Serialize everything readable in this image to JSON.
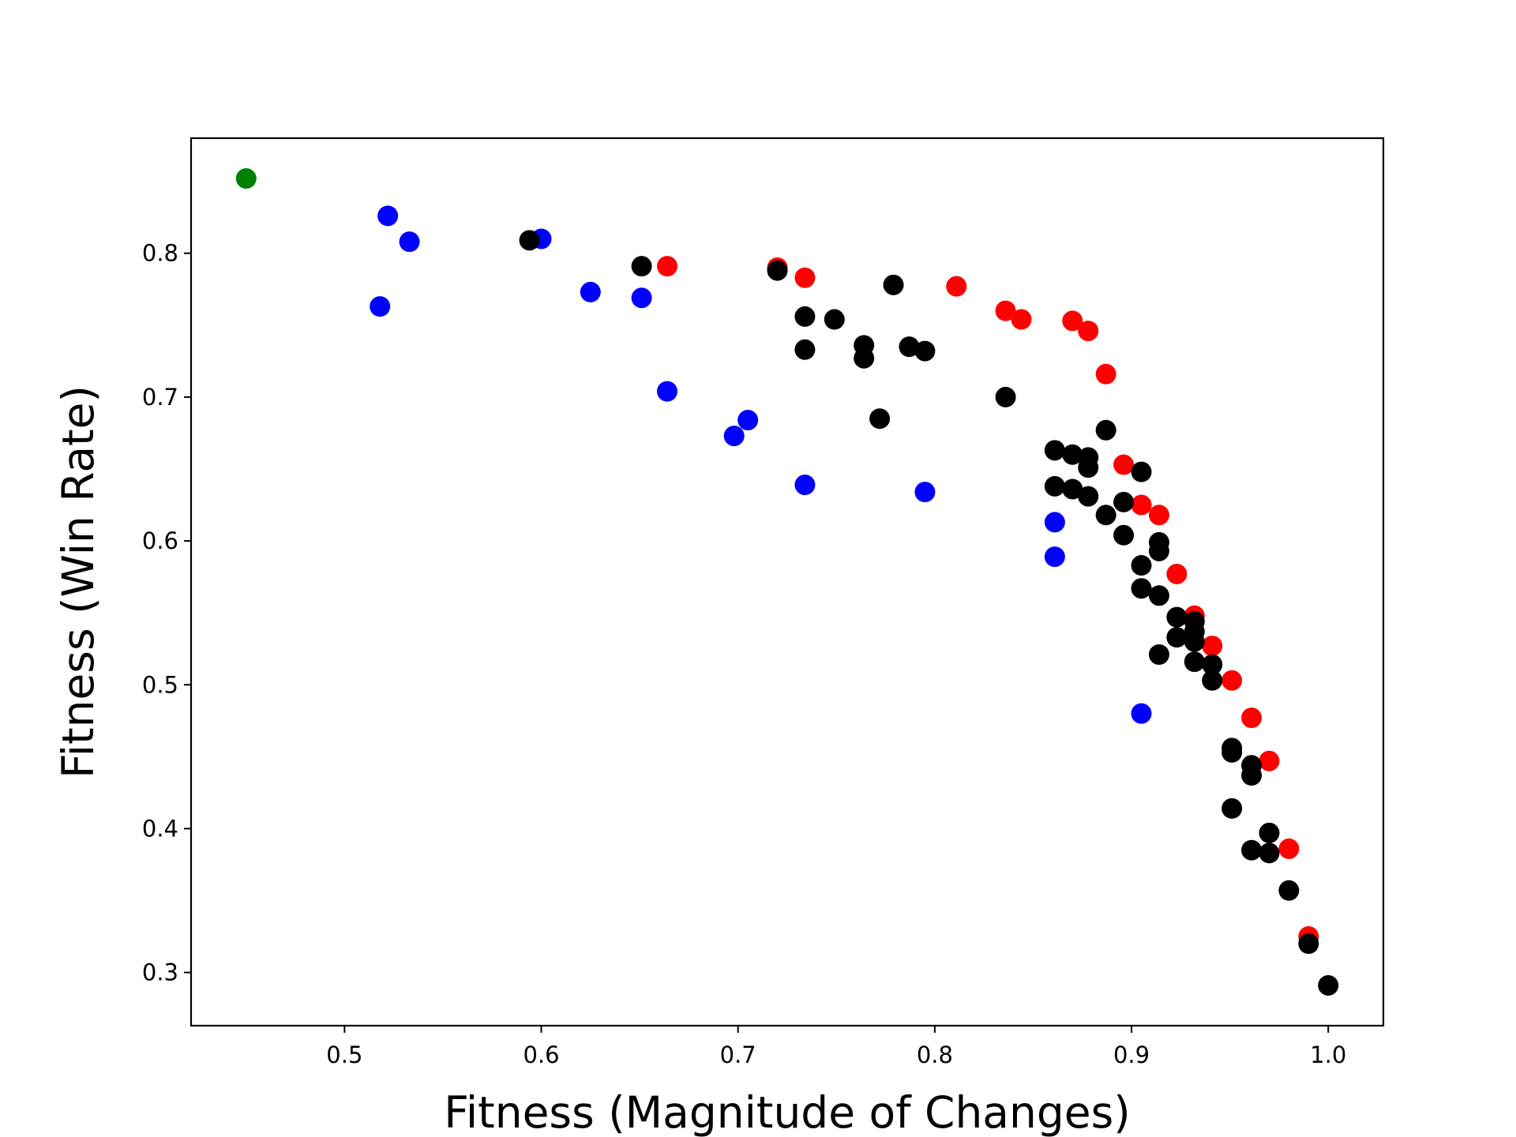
{
  "chart_data": {
    "type": "scatter",
    "title": "",
    "xlabel": "Fitness (Magnitude of Changes)",
    "ylabel": "Fitness (Win Rate)",
    "xlim": [
      0.422,
      1.028
    ],
    "ylim": [
      0.263,
      0.88
    ],
    "xticks": [
      0.5,
      0.6,
      0.7,
      0.8,
      0.9,
      1.0
    ],
    "xtick_labels": [
      "0.5",
      "0.6",
      "0.7",
      "0.8",
      "0.9",
      "1.0"
    ],
    "yticks": [
      0.3,
      0.4,
      0.5,
      0.6,
      0.7,
      0.8
    ],
    "ytick_labels": [
      "0.3",
      "0.4",
      "0.5",
      "0.6",
      "0.7",
      "0.8"
    ],
    "grid": false,
    "legend": "none",
    "series": [
      {
        "color": "#0000ff",
        "points": [
          [
            0.522,
            0.826
          ],
          [
            0.533,
            0.808
          ],
          [
            0.518,
            0.763
          ],
          [
            0.6,
            0.81
          ],
          [
            0.625,
            0.773
          ],
          [
            0.651,
            0.769
          ],
          [
            0.664,
            0.704
          ],
          [
            0.698,
            0.673
          ],
          [
            0.705,
            0.684
          ],
          [
            0.734,
            0.639
          ],
          [
            0.795,
            0.634
          ],
          [
            0.861,
            0.613
          ],
          [
            0.861,
            0.589
          ],
          [
            0.905,
            0.48
          ]
        ]
      },
      {
        "color": "#ff0000",
        "points": [
          [
            0.664,
            0.791
          ],
          [
            0.72,
            0.79
          ],
          [
            0.734,
            0.783
          ],
          [
            0.811,
            0.777
          ],
          [
            0.836,
            0.76
          ],
          [
            0.844,
            0.754
          ],
          [
            0.87,
            0.753
          ],
          [
            0.878,
            0.746
          ],
          [
            0.887,
            0.716
          ],
          [
            0.896,
            0.653
          ],
          [
            0.905,
            0.625
          ],
          [
            0.914,
            0.618
          ],
          [
            0.923,
            0.577
          ],
          [
            0.932,
            0.548
          ],
          [
            0.941,
            0.527
          ],
          [
            0.951,
            0.503
          ],
          [
            0.961,
            0.477
          ],
          [
            0.97,
            0.447
          ],
          [
            0.98,
            0.386
          ],
          [
            0.99,
            0.325
          ]
        ]
      },
      {
        "color": "#000000",
        "points": [
          [
            0.594,
            0.809
          ],
          [
            0.651,
            0.791
          ],
          [
            0.72,
            0.788
          ],
          [
            0.734,
            0.756
          ],
          [
            0.749,
            0.754
          ],
          [
            0.734,
            0.733
          ],
          [
            0.764,
            0.736
          ],
          [
            0.764,
            0.727
          ],
          [
            0.779,
            0.778
          ],
          [
            0.787,
            0.735
          ],
          [
            0.795,
            0.732
          ],
          [
            0.772,
            0.685
          ],
          [
            0.836,
            0.7
          ],
          [
            0.887,
            0.677
          ],
          [
            0.861,
            0.663
          ],
          [
            0.87,
            0.66
          ],
          [
            0.878,
            0.658
          ],
          [
            0.878,
            0.651
          ],
          [
            0.861,
            0.638
          ],
          [
            0.87,
            0.636
          ],
          [
            0.878,
            0.631
          ],
          [
            0.887,
            0.618
          ],
          [
            0.896,
            0.627
          ],
          [
            0.905,
            0.648
          ],
          [
            0.896,
            0.604
          ],
          [
            0.914,
            0.599
          ],
          [
            0.914,
            0.593
          ],
          [
            0.905,
            0.583
          ],
          [
            0.905,
            0.567
          ],
          [
            0.914,
            0.562
          ],
          [
            0.923,
            0.547
          ],
          [
            0.932,
            0.544
          ],
          [
            0.932,
            0.537
          ],
          [
            0.923,
            0.533
          ],
          [
            0.932,
            0.53
          ],
          [
            0.914,
            0.521
          ],
          [
            0.932,
            0.516
          ],
          [
            0.941,
            0.514
          ],
          [
            0.941,
            0.503
          ],
          [
            0.951,
            0.456
          ],
          [
            0.951,
            0.453
          ],
          [
            0.961,
            0.444
          ],
          [
            0.961,
            0.437
          ],
          [
            0.951,
            0.414
          ],
          [
            0.97,
            0.397
          ],
          [
            0.961,
            0.385
          ],
          [
            0.97,
            0.383
          ],
          [
            0.98,
            0.357
          ],
          [
            0.99,
            0.32
          ],
          [
            1.0,
            0.291
          ]
        ]
      },
      {
        "color": "#008000",
        "points": [
          [
            0.45,
            0.852
          ]
        ]
      }
    ]
  }
}
